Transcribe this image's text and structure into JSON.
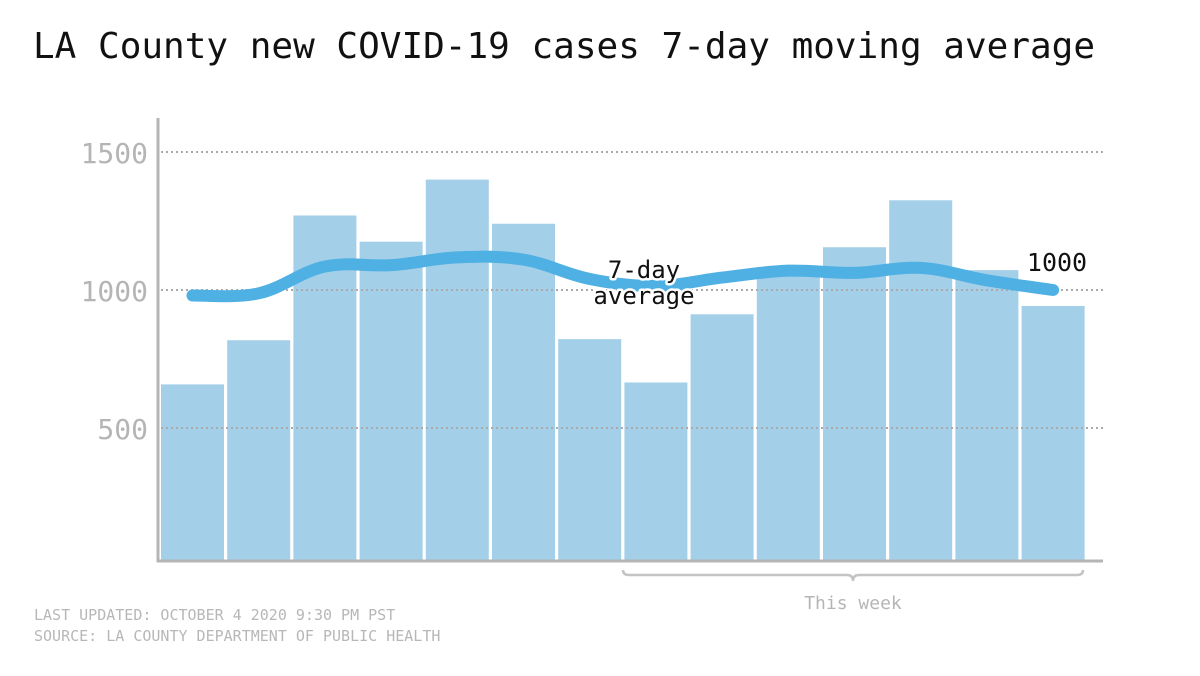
{
  "title": "LA County new COVID-19 cases 7-day moving average",
  "chart_data": {
    "type": "bar",
    "title": "LA County new COVID-19 cases 7-day moving average",
    "xlabel": "",
    "ylabel": "",
    "ylim": [
      0,
      1620
    ],
    "yticks": [
      500,
      1000,
      1500
    ],
    "grid": true,
    "bar_values": [
      658,
      818,
      1270,
      1175,
      1400,
      1240,
      822,
      665,
      912,
      1065,
      1155,
      1325,
      1072,
      942
    ],
    "average_values": [
      980,
      988,
      1085,
      1090,
      1118,
      1110,
      1040,
      1015,
      1045,
      1070,
      1062,
      1080,
      1035,
      1000
    ],
    "average_label": [
      "7-day",
      "average"
    ],
    "end_label": "1000",
    "bracket_label": "This week",
    "bracket_start_index": 7,
    "bracket_end_index": 13,
    "colors": {
      "bar": "#a3cfe8",
      "line": "#4fb0e3",
      "axis": "#b5b5b5",
      "grid": "#aaaaaa",
      "tick_text": "#b5b5b5",
      "label_text": "#111111"
    }
  },
  "footer": {
    "updated": "LAST UPDATED: OCTOBER 4 2020 9:30 PM PST",
    "source": "SOURCE: LA COUNTY DEPARTMENT OF PUBLIC HEALTH"
  }
}
